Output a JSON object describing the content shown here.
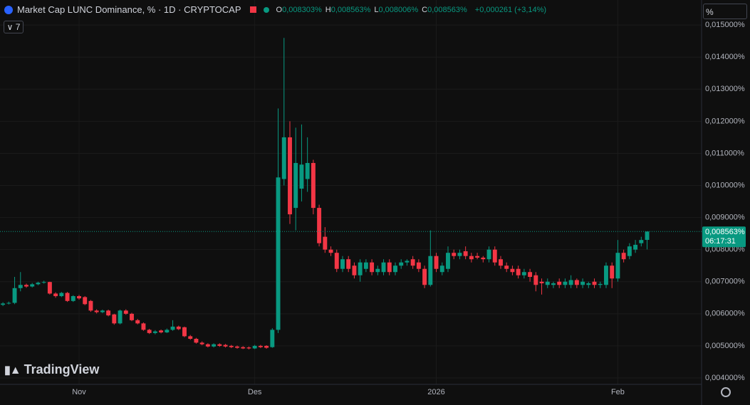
{
  "header": {
    "title": "Market Cap LUNC Dominance, % · 1D · CRYPTOCAP",
    "ohlc": [
      {
        "key": "O",
        "value": "0,008303%"
      },
      {
        "key": "H",
        "value": "0,008563%"
      },
      {
        "key": "L",
        "value": "0,008006%"
      },
      {
        "key": "C",
        "value": "0,008563%"
      }
    ],
    "change": "+0,000261 (+3,14%)",
    "badge": "7",
    "scale_box": "%",
    "logo": "TradingView"
  },
  "chart_data": {
    "type": "candlestick",
    "up_color": "#089981",
    "down_color": "#f23645",
    "grid": true,
    "xlim": [
      -0.5,
      119.3
    ],
    "xticks": [
      {
        "value": 13,
        "label": "Nov"
      },
      {
        "value": 43,
        "label": "Des"
      },
      {
        "value": 74,
        "label": "2026"
      },
      {
        "value": 105,
        "label": "Feb"
      }
    ],
    "ylim": [
      0.0038,
      0.01578
    ],
    "yticks": [
      {
        "value": 0.015,
        "label": "0,015000%"
      },
      {
        "value": 0.014,
        "label": "0,014000%"
      },
      {
        "value": 0.013,
        "label": "0,013000%"
      },
      {
        "value": 0.012,
        "label": "0,012000%"
      },
      {
        "value": 0.011,
        "label": "0,011000%"
      },
      {
        "value": 0.01,
        "label": "0,010000%"
      },
      {
        "value": 0.009,
        "label": "0,009000%"
      },
      {
        "value": 0.008,
        "label": "0,008000%"
      },
      {
        "value": 0.007,
        "label": "0,007000%"
      },
      {
        "value": 0.006,
        "label": "0,006000%"
      },
      {
        "value": 0.005,
        "label": "0,005000%"
      },
      {
        "value": 0.004,
        "label": "0,004000%"
      }
    ],
    "last_price": 0.008563,
    "last_price_label": "0,008563%",
    "countdown": "06:17:31",
    "open": [
      0.00628,
      0.00632,
      0.00634,
      0.0068,
      0.0069,
      0.00685,
      0.00692,
      0.00697,
      0.00699,
      0.00663,
      0.00655,
      0.00665,
      0.0064,
      0.00655,
      0.00652,
      0.0064,
      0.0061,
      0.00605,
      0.0061,
      0.00598,
      0.0057,
      0.0061,
      0.006,
      0.0058,
      0.0057,
      0.0055,
      0.0054,
      0.00548,
      0.00542,
      0.0055,
      0.0056,
      0.00558,
      0.0053,
      0.00522,
      0.0051,
      0.00505,
      0.00498,
      0.00505,
      0.00503,
      0.005,
      0.00498,
      0.00496,
      0.00495,
      0.00492,
      0.005,
      0.005,
      0.00496,
      0.0055,
      0.0102,
      0.0115,
      0.0093,
      0.0099,
      0.0102,
      0.0107,
      0.0093,
      0.0084,
      0.008,
      0.0079,
      0.0074,
      0.0077,
      0.0075,
      0.0072,
      0.0074,
      0.0076,
      0.0073,
      0.0073,
      0.0076,
      0.0073,
      0.0075,
      0.0076,
      0.0077,
      0.0076,
      0.0074,
      0.0069,
      0.0078,
      0.0073,
      0.0074,
      0.0079,
      0.0078,
      0.00795,
      0.0078,
      0.0078,
      0.00775,
      0.0077,
      0.008,
      0.0077,
      0.0075,
      0.0074,
      0.0074,
      0.0072,
      0.0073,
      0.0072,
      0.007,
      0.0069,
      0.0069,
      0.007,
      0.0069,
      0.0069,
      0.00705,
      0.0069,
      0.0069,
      0.007,
      0.0069,
      0.0069,
      0.0075,
      0.0071,
      0.0079,
      0.0078,
      0.008,
      0.0082,
      0.008303
    ],
    "high": [
      0.00636,
      0.00638,
      0.00715,
      0.0073,
      0.00694,
      0.00696,
      0.007,
      0.00703,
      0.007,
      0.00667,
      0.00668,
      0.00668,
      0.00658,
      0.00659,
      0.00655,
      0.00643,
      0.00614,
      0.00613,
      0.00613,
      0.006,
      0.00613,
      0.00614,
      0.00603,
      0.00584,
      0.00573,
      0.00553,
      0.00549,
      0.00551,
      0.00554,
      0.0058,
      0.00563,
      0.0056,
      0.00534,
      0.00525,
      0.00514,
      0.00508,
      0.00508,
      0.00508,
      0.00506,
      0.00503,
      0.00501,
      0.00499,
      0.00498,
      0.00503,
      0.00503,
      0.00502,
      0.00555,
      0.0124,
      0.0146,
      0.012,
      0.0118,
      0.0119,
      0.0115,
      0.0108,
      0.0094,
      0.0087,
      0.0081,
      0.008,
      0.0078,
      0.0078,
      0.0076,
      0.0077,
      0.0077,
      0.0077,
      0.0075,
      0.0077,
      0.0077,
      0.0076,
      0.0077,
      0.0077,
      0.0078,
      0.0077,
      0.0075,
      0.0086,
      0.0079,
      0.0076,
      0.0081,
      0.008,
      0.008,
      0.0081,
      0.0079,
      0.0079,
      0.0078,
      0.0081,
      0.0081,
      0.0078,
      0.0076,
      0.0075,
      0.0075,
      0.0074,
      0.0074,
      0.0073,
      0.0071,
      0.0071,
      0.007,
      0.0071,
      0.0071,
      0.0072,
      0.0071,
      0.0071,
      0.007,
      0.0071,
      0.007,
      0.0076,
      0.0076,
      0.0083,
      0.008,
      0.0082,
      0.0083,
      0.0084,
      0.008563
    ],
    "low": [
      0.00624,
      0.00629,
      0.0063,
      0.0067,
      0.00681,
      0.00682,
      0.00689,
      0.00694,
      0.0066,
      0.0065,
      0.00652,
      0.00637,
      0.00637,
      0.00644,
      0.00627,
      0.00606,
      0.00601,
      0.00602,
      0.00592,
      0.00566,
      0.00567,
      0.00597,
      0.00577,
      0.00567,
      0.00547,
      0.00537,
      0.00536,
      0.00539,
      0.0054,
      0.00547,
      0.00549,
      0.00527,
      0.00519,
      0.00507,
      0.00502,
      0.00495,
      0.00495,
      0.00497,
      0.00495,
      0.00493,
      0.00491,
      0.0049,
      0.00489,
      0.0049,
      0.00493,
      0.00491,
      0.00494,
      0.0054,
      0.01,
      0.0088,
      0.0086,
      0.0095,
      0.0098,
      0.0091,
      0.0081,
      0.0079,
      0.0078,
      0.0073,
      0.0073,
      0.0073,
      0.0071,
      0.007,
      0.0073,
      0.0072,
      0.0072,
      0.0072,
      0.0072,
      0.0072,
      0.0074,
      0.0075,
      0.0074,
      0.0073,
      0.0068,
      0.00685,
      0.0073,
      0.0072,
      0.0073,
      0.0077,
      0.0077,
      0.0077,
      0.0076,
      0.0077,
      0.0076,
      0.0076,
      0.0075,
      0.0074,
      0.0073,
      0.0072,
      0.0071,
      0.0071,
      0.007,
      0.0067,
      0.0066,
      0.0068,
      0.0068,
      0.0068,
      0.0068,
      0.0068,
      0.0068,
      0.0068,
      0.0068,
      0.0068,
      0.0068,
      0.0068,
      0.0068,
      0.007,
      0.0076,
      0.0077,
      0.0079,
      0.0081,
      0.008006
    ],
    "close": [
      0.00632,
      0.00634,
      0.0068,
      0.0069,
      0.00685,
      0.00692,
      0.00697,
      0.00699,
      0.00663,
      0.00655,
      0.00665,
      0.0064,
      0.00655,
      0.00648,
      0.0063,
      0.0061,
      0.00605,
      0.0061,
      0.00595,
      0.0057,
      0.0061,
      0.006,
      0.0058,
      0.0057,
      0.0055,
      0.0054,
      0.00545,
      0.00542,
      0.0055,
      0.0056,
      0.00552,
      0.0053,
      0.00522,
      0.0051,
      0.00505,
      0.00498,
      0.00505,
      0.005,
      0.00498,
      0.00496,
      0.00494,
      0.00492,
      0.00492,
      0.005,
      0.00496,
      0.00494,
      0.0055,
      0.01025,
      0.0115,
      0.0091,
      0.0107,
      0.01065,
      0.0107,
      0.0093,
      0.0082,
      0.008,
      0.0079,
      0.0074,
      0.0077,
      0.0074,
      0.0072,
      0.0076,
      0.0076,
      0.0073,
      0.0074,
      0.0076,
      0.0073,
      0.0075,
      0.0076,
      0.00765,
      0.0075,
      0.0074,
      0.0069,
      0.0078,
      0.0074,
      0.0075,
      0.0079,
      0.0078,
      0.0079,
      0.0078,
      0.0077,
      0.00775,
      0.0077,
      0.008,
      0.0076,
      0.0075,
      0.0074,
      0.0073,
      0.0072,
      0.0073,
      0.00715,
      0.0069,
      0.00695,
      0.007,
      0.00695,
      0.0069,
      0.007,
      0.00705,
      0.0069,
      0.007,
      0.00695,
      0.0069,
      0.00693,
      0.0075,
      0.0071,
      0.0079,
      0.0077,
      0.0081,
      0.00815,
      0.0083,
      0.008563
    ]
  }
}
